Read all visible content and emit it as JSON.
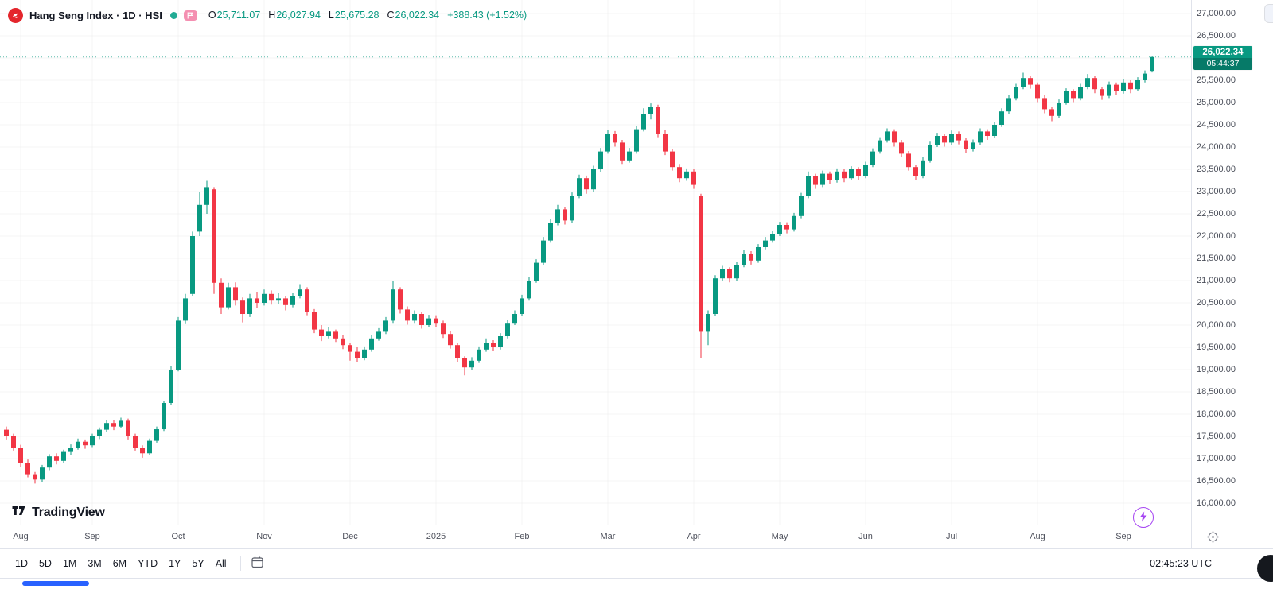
{
  "header": {
    "symbol_title": "Hang Seng Index · 1D · HSI",
    "ohlc": {
      "o_label": "O",
      "o_value": "25,711.07",
      "h_label": "H",
      "h_value": "26,027.94",
      "l_label": "L",
      "l_value": "25,675.28",
      "c_label": "C",
      "c_value": "26,022.34",
      "change": "+388.43 (+1.52%)"
    }
  },
  "price_axis": {
    "last_price": "26,022.34",
    "countdown": "05:44:37"
  },
  "toolbar": {
    "ranges": [
      "1D",
      "5D",
      "1M",
      "3M",
      "6M",
      "YTD",
      "1Y",
      "5Y",
      "All"
    ],
    "clock": "02:45:23 UTC"
  },
  "branding": {
    "logo_text": "TradingView"
  },
  "theme": {
    "up": "#089981",
    "down": "#F23645",
    "accent_blue": "#2962FF",
    "badge": "#089981",
    "badge_countdown": "#067A68",
    "purple": "#A544F2",
    "logo_red": "#E4262C"
  },
  "icons": {
    "symbol-logo-icon": "red circle emblem",
    "market-status-icon": "teal dot",
    "flag-icon": "pink flag chip",
    "go-to-date-icon": "calendar",
    "lightning-icon": "purple bolt in circle",
    "scroll-to-realtime-icon": "target crosshair",
    "tradingview-mark-icon": "17 monogram",
    "floating-button": "dark circle (partially visible)"
  },
  "chart_data": {
    "type": "candlestick",
    "title": "Hang Seng Index",
    "symbol": "HSI",
    "timeframe": "1D",
    "colors": {
      "up": "#089981",
      "down": "#F23645"
    },
    "y_axis": {
      "min": 16000,
      "max": 27000,
      "step": 500,
      "ticks": [
        "27,000.00",
        "26,500.00",
        "26,000.00",
        "25,500.00",
        "25,000.00",
        "24,500.00",
        "24,000.00",
        "23,500.00",
        "23,000.00",
        "22,500.00",
        "22,000.00",
        "21,500.00",
        "21,000.00",
        "20,500.00",
        "20,000.00",
        "19,500.00",
        "19,000.00",
        "18,500.00",
        "18,000.00",
        "17,500.00",
        "17,000.00",
        "16,500.00",
        "16,000.00"
      ]
    },
    "x_axis": {
      "ticks": [
        {
          "label": "Aug",
          "index": 2
        },
        {
          "label": "Sep",
          "index": 12
        },
        {
          "label": "Oct",
          "index": 24
        },
        {
          "label": "Nov",
          "index": 36
        },
        {
          "label": "Dec",
          "index": 48
        },
        {
          "label": "2025",
          "index": 60
        },
        {
          "label": "Feb",
          "index": 72
        },
        {
          "label": "Mar",
          "index": 84
        },
        {
          "label": "Apr",
          "index": 96
        },
        {
          "label": "May",
          "index": 108
        },
        {
          "label": "Jun",
          "index": 120
        },
        {
          "label": "Jul",
          "index": 132
        },
        {
          "label": "Aug",
          "index": 144
        },
        {
          "label": "Sep",
          "index": 156
        }
      ]
    },
    "last": {
      "price": 26022.34,
      "countdown": "05:44:37",
      "open": 25711.07,
      "high": 26027.94,
      "low": 25675.28,
      "close": 26022.34,
      "change": 388.43,
      "change_pct": 1.52
    },
    "candles": [
      [
        17650,
        17720,
        17430,
        17500
      ],
      [
        17500,
        17560,
        17180,
        17250
      ],
      [
        17250,
        17310,
        16820,
        16900
      ],
      [
        16900,
        16980,
        16580,
        16650
      ],
      [
        16650,
        16700,
        16440,
        16530
      ],
      [
        16530,
        16860,
        16470,
        16800
      ],
      [
        16800,
        17100,
        16740,
        17050
      ],
      [
        17050,
        17120,
        16870,
        16950
      ],
      [
        16950,
        17200,
        16900,
        17150
      ],
      [
        17150,
        17320,
        17080,
        17250
      ],
      [
        17250,
        17450,
        17200,
        17380
      ],
      [
        17380,
        17430,
        17220,
        17300
      ],
      [
        17300,
        17560,
        17260,
        17500
      ],
      [
        17500,
        17700,
        17440,
        17650
      ],
      [
        17650,
        17870,
        17600,
        17800
      ],
      [
        17800,
        17860,
        17640,
        17720
      ],
      [
        17720,
        17920,
        17680,
        17850
      ],
      [
        17850,
        17900,
        17430,
        17500
      ],
      [
        17500,
        17560,
        17180,
        17250
      ],
      [
        17250,
        17300,
        17020,
        17120
      ],
      [
        17120,
        17450,
        17080,
        17400
      ],
      [
        17400,
        17720,
        17360,
        17660
      ],
      [
        17660,
        18300,
        17620,
        18250
      ],
      [
        18250,
        19080,
        18200,
        19000
      ],
      [
        19000,
        20180,
        18960,
        20100
      ],
      [
        20100,
        20700,
        20040,
        20600
      ],
      [
        20700,
        22100,
        20660,
        22000
      ],
      [
        22100,
        23000,
        22000,
        22700
      ],
      [
        22700,
        23240,
        22500,
        23100
      ],
      [
        23050,
        23100,
        20700,
        20950
      ],
      [
        20950,
        21050,
        20250,
        20400
      ],
      [
        20400,
        20950,
        20350,
        20850
      ],
      [
        20850,
        20960,
        20440,
        20550
      ],
      [
        20550,
        20620,
        20060,
        20250
      ],
      [
        20250,
        20700,
        20180,
        20600
      ],
      [
        20600,
        20750,
        20380,
        20500
      ],
      [
        20500,
        20800,
        20440,
        20700
      ],
      [
        20700,
        20780,
        20460,
        20550
      ],
      [
        20550,
        20720,
        20480,
        20600
      ],
      [
        20600,
        20660,
        20330,
        20450
      ],
      [
        20450,
        20720,
        20400,
        20650
      ],
      [
        20650,
        20920,
        20600,
        20800
      ],
      [
        20800,
        20850,
        20220,
        20300
      ],
      [
        20300,
        20360,
        19820,
        19900
      ],
      [
        19900,
        20000,
        19640,
        19750
      ],
      [
        19750,
        19950,
        19700,
        19850
      ],
      [
        19850,
        19900,
        19620,
        19700
      ],
      [
        19700,
        19780,
        19460,
        19550
      ],
      [
        19550,
        19600,
        19200,
        19400
      ],
      [
        19400,
        19500,
        19160,
        19250
      ],
      [
        19250,
        19520,
        19210,
        19450
      ],
      [
        19450,
        19780,
        19400,
        19700
      ],
      [
        19700,
        19930,
        19650,
        19850
      ],
      [
        19850,
        20180,
        19800,
        20100
      ],
      [
        20100,
        21000,
        20050,
        20800
      ],
      [
        20800,
        20850,
        20260,
        20350
      ],
      [
        20350,
        20420,
        20010,
        20100
      ],
      [
        20100,
        20330,
        20050,
        20250
      ],
      [
        20250,
        20300,
        19920,
        20000
      ],
      [
        20000,
        20230,
        19950,
        20150
      ],
      [
        20150,
        20220,
        19960,
        20050
      ],
      [
        20050,
        20100,
        19710,
        19800
      ],
      [
        19800,
        19860,
        19470,
        19550
      ],
      [
        19550,
        19600,
        19170,
        19250
      ],
      [
        19250,
        19300,
        18870,
        19050
      ],
      [
        19050,
        19280,
        19000,
        19200
      ],
      [
        19200,
        19520,
        19150,
        19450
      ],
      [
        19450,
        19700,
        19400,
        19600
      ],
      [
        19600,
        19660,
        19410,
        19500
      ],
      [
        19500,
        19820,
        19450,
        19750
      ],
      [
        19750,
        20120,
        19700,
        20050
      ],
      [
        20050,
        20330,
        20000,
        20250
      ],
      [
        20250,
        20680,
        20200,
        20600
      ],
      [
        20600,
        21080,
        20550,
        21000
      ],
      [
        21000,
        21480,
        20950,
        21400
      ],
      [
        21400,
        21980,
        21350,
        21900
      ],
      [
        21900,
        22380,
        21850,
        22300
      ],
      [
        22300,
        22700,
        22240,
        22600
      ],
      [
        22600,
        22660,
        22260,
        22350
      ],
      [
        22350,
        22980,
        22300,
        22900
      ],
      [
        22900,
        23380,
        22850,
        23300
      ],
      [
        23300,
        23360,
        22950,
        23050
      ],
      [
        23050,
        23580,
        23000,
        23500
      ],
      [
        23500,
        23980,
        23440,
        23900
      ],
      [
        23900,
        24380,
        23850,
        24300
      ],
      [
        24300,
        24360,
        24010,
        24100
      ],
      [
        24100,
        24160,
        23620,
        23700
      ],
      [
        23700,
        23980,
        23650,
        23900
      ],
      [
        23900,
        24470,
        23850,
        24400
      ],
      [
        24400,
        24870,
        24350,
        24750
      ],
      [
        24750,
        24980,
        24620,
        24900
      ],
      [
        24900,
        24950,
        24220,
        24300
      ],
      [
        24300,
        24380,
        23820,
        23900
      ],
      [
        23900,
        23960,
        23470,
        23550
      ],
      [
        23550,
        23620,
        23210,
        23300
      ],
      [
        23300,
        23520,
        23240,
        23450
      ],
      [
        23450,
        23500,
        23060,
        23150
      ],
      [
        22900,
        22950,
        19260,
        19850
      ],
      [
        19850,
        20330,
        19550,
        20250
      ],
      [
        20250,
        21120,
        20200,
        21050
      ],
      [
        21050,
        21330,
        21000,
        21250
      ],
      [
        21250,
        21300,
        20960,
        21050
      ],
      [
        21050,
        21420,
        21000,
        21350
      ],
      [
        21350,
        21680,
        21300,
        21600
      ],
      [
        21600,
        21660,
        21360,
        21450
      ],
      [
        21450,
        21820,
        21400,
        21750
      ],
      [
        21750,
        21980,
        21700,
        21900
      ],
      [
        21900,
        22120,
        21850,
        22050
      ],
      [
        22050,
        22320,
        22000,
        22250
      ],
      [
        22250,
        22310,
        22060,
        22150
      ],
      [
        22150,
        22520,
        22100,
        22450
      ],
      [
        22450,
        22970,
        22400,
        22900
      ],
      [
        22900,
        23450,
        22850,
        23350
      ],
      [
        23350,
        23400,
        23060,
        23150
      ],
      [
        23150,
        23470,
        23100,
        23400
      ],
      [
        23400,
        23450,
        23160,
        23250
      ],
      [
        23250,
        23520,
        23200,
        23450
      ],
      [
        23450,
        23500,
        23210,
        23300
      ],
      [
        23300,
        23570,
        23250,
        23500
      ],
      [
        23500,
        23550,
        23260,
        23350
      ],
      [
        23350,
        23670,
        23300,
        23600
      ],
      [
        23600,
        23970,
        23550,
        23900
      ],
      [
        23900,
        24220,
        23850,
        24150
      ],
      [
        24150,
        24420,
        24100,
        24350
      ],
      [
        24350,
        24400,
        24010,
        24100
      ],
      [
        24100,
        24160,
        23770,
        23850
      ],
      [
        23850,
        23910,
        23470,
        23550
      ],
      [
        23550,
        23600,
        23250,
        23350
      ],
      [
        23350,
        23770,
        23300,
        23700
      ],
      [
        23700,
        24120,
        23650,
        24050
      ],
      [
        24050,
        24320,
        24000,
        24250
      ],
      [
        24250,
        24300,
        24010,
        24100
      ],
      [
        24100,
        24370,
        24050,
        24300
      ],
      [
        24300,
        24350,
        24060,
        24150
      ],
      [
        24150,
        24200,
        23860,
        23950
      ],
      [
        23950,
        24170,
        23900,
        24100
      ],
      [
        24100,
        24420,
        24050,
        24350
      ],
      [
        24350,
        24400,
        24160,
        24250
      ],
      [
        24250,
        24570,
        24200,
        24500
      ],
      [
        24500,
        24870,
        24450,
        24800
      ],
      [
        24800,
        25170,
        24750,
        25100
      ],
      [
        25100,
        25420,
        25050,
        25350
      ],
      [
        25350,
        25670,
        25300,
        25550
      ],
      [
        25550,
        25600,
        25310,
        25400
      ],
      [
        25400,
        25450,
        25010,
        25100
      ],
      [
        25100,
        25160,
        24760,
        24850
      ],
      [
        24850,
        24900,
        24580,
        24700
      ],
      [
        24700,
        25070,
        24650,
        25000
      ],
      [
        25000,
        25320,
        24950,
        25250
      ],
      [
        25250,
        25300,
        25010,
        25100
      ],
      [
        25100,
        25420,
        25050,
        25350
      ],
      [
        25350,
        25640,
        25300,
        25550
      ],
      [
        25550,
        25600,
        25210,
        25300
      ],
      [
        25300,
        25350,
        25060,
        25150
      ],
      [
        25150,
        25470,
        25100,
        25400
      ],
      [
        25400,
        25450,
        25160,
        25250
      ],
      [
        25250,
        25520,
        25200,
        25450
      ],
      [
        25450,
        25500,
        25210,
        25300
      ],
      [
        25300,
        25570,
        25250,
        25500
      ],
      [
        25500,
        25720,
        25450,
        25650
      ],
      [
        25711.07,
        26027.94,
        25675.28,
        26022.34
      ]
    ]
  }
}
